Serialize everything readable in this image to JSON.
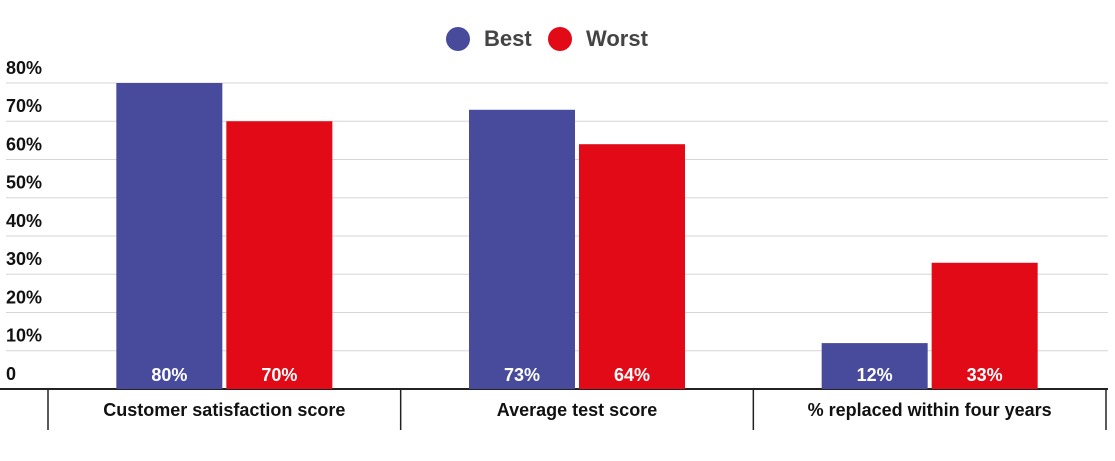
{
  "chart_data": {
    "type": "bar",
    "categories": [
      "Customer satisfaction score",
      "Average test score",
      "% replaced within four years"
    ],
    "series": [
      {
        "name": "Best",
        "color": "#484b9b",
        "values": [
          80,
          73,
          12
        ],
        "value_labels": [
          "80%",
          "73%",
          "12%"
        ]
      },
      {
        "name": "Worst",
        "color": "#e10a16",
        "values": [
          70,
          64,
          33
        ],
        "value_labels": [
          "70%",
          "64%",
          "33%"
        ]
      }
    ],
    "ylim": [
      0,
      80
    ],
    "yticks": [
      0,
      {
        "value": 10,
        "label": "10%"
      },
      {
        "value": 20,
        "label": "20%"
      },
      {
        "value": 30,
        "label": "30%"
      },
      {
        "value": 40,
        "label": "40%"
      },
      {
        "value": 50,
        "label": "50%"
      },
      {
        "value": 60,
        "label": "60%"
      },
      {
        "value": 70,
        "label": "70%"
      },
      {
        "value": 80,
        "label": "80%"
      }
    ],
    "grid": true,
    "legend": "top"
  }
}
